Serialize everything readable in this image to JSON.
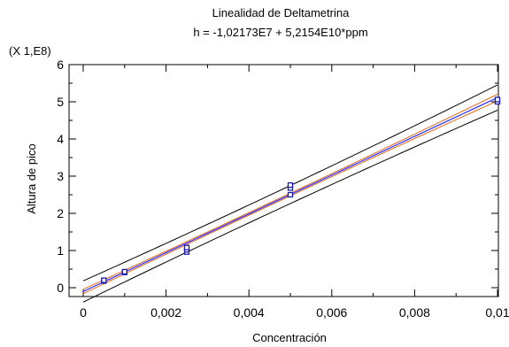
{
  "chart_data": {
    "type": "scatter",
    "title": "Linealidad de Deltametrina",
    "subtitle": "h = -1,02173E7 + 5,2154E10*ppm",
    "xlabel": "Concentración",
    "ylabel": "Altura de pico",
    "y_multiplier_label": "(X 1,E8)",
    "xlim": [
      0,
      0.01
    ],
    "ylim": [
      0,
      6
    ],
    "x_ticks": [
      "0",
      "0,002",
      "0,004",
      "0,006",
      "0,008",
      "0,01"
    ],
    "y_ticks": [
      "0",
      "1",
      "2",
      "3",
      "4",
      "5",
      "6"
    ],
    "grid": false,
    "legend": "none",
    "fit": {
      "intercept": -0.102173,
      "slope": 521.54,
      "color": "#2b2bff",
      "confidence_band_color": "#e06a1a",
      "prediction_band_color": "#000000"
    },
    "points": [
      {
        "x": 0.0005,
        "y": 0.18
      },
      {
        "x": 0.0005,
        "y": 0.2
      },
      {
        "x": 0.001,
        "y": 0.41
      },
      {
        "x": 0.001,
        "y": 0.43
      },
      {
        "x": 0.0025,
        "y": 0.96
      },
      {
        "x": 0.0025,
        "y": 1.02
      },
      {
        "x": 0.0025,
        "y": 1.08
      },
      {
        "x": 0.005,
        "y": 2.5
      },
      {
        "x": 0.005,
        "y": 2.68
      },
      {
        "x": 0.005,
        "y": 2.76
      },
      {
        "x": 0.01,
        "y": 5.0
      },
      {
        "x": 0.01,
        "y": 5.06
      }
    ]
  }
}
